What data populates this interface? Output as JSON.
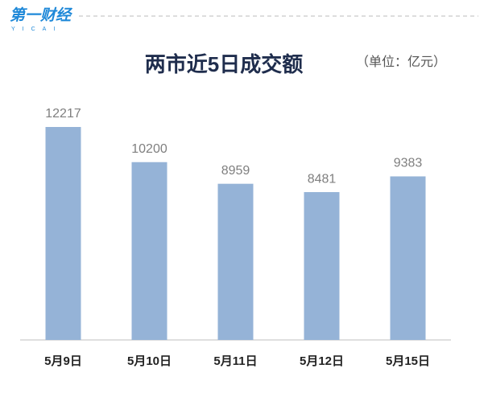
{
  "logo": {
    "name": "第一财经",
    "sub": "YICAI"
  },
  "chart_data": {
    "type": "bar",
    "title": "两市近5日成交额",
    "unit": "（单位：亿元）",
    "categories": [
      "5月9日",
      "5月10日",
      "5月11日",
      "5月12日",
      "5月15日"
    ],
    "values": [
      12217,
      10200,
      8959,
      8481,
      9383
    ],
    "color": "#95b3d7"
  }
}
